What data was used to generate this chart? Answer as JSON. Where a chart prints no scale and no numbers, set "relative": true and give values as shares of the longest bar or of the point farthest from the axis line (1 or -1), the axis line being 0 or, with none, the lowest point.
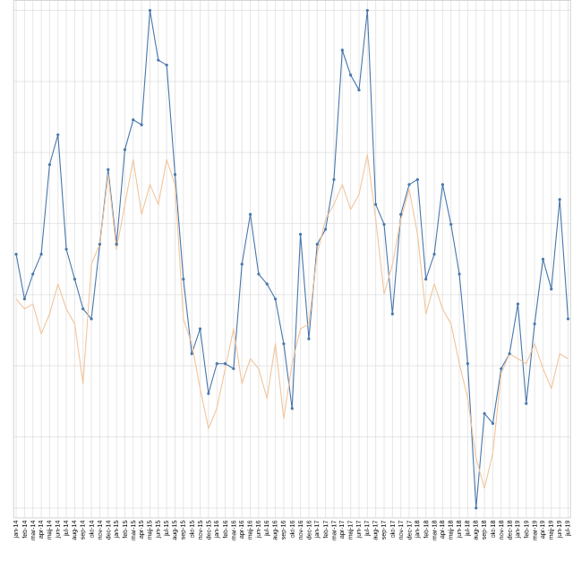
{
  "chart_data": {
    "type": "line",
    "relative": true,
    "grid": true,
    "categories": [
      "jan-14",
      "feb-14",
      "mar-14",
      "apr-14",
      "maj-14",
      "jun-14",
      "jul-14",
      "aug-14",
      "sep-14",
      "okt-14",
      "nov-14",
      "dec-14",
      "jan-15",
      "feb-15",
      "mar-15",
      "apr-15",
      "maj-15",
      "jun-15",
      "jul-15",
      "aug-15",
      "sep-15",
      "okt-15",
      "nov-15",
      "dec-15",
      "jan-16",
      "feb-16",
      "mar-16",
      "apr-16",
      "maj-16",
      "jun-16",
      "jul-16",
      "aug-16",
      "sep-16",
      "okt-16",
      "nov-16",
      "dec-16",
      "jan-17",
      "feb-17",
      "mar-17",
      "apr-17",
      "maj-17",
      "jun-17",
      "jul-17",
      "aug-17",
      "sep-17",
      "okt-17",
      "nov-17",
      "dec-17",
      "jan-18",
      "feb-18",
      "mar-18",
      "apr-18",
      "maj-18",
      "jun-18",
      "jul-18",
      "aug-18",
      "sep-18",
      "okt-18",
      "nov-18",
      "dec-18",
      "jan-19",
      "feb-19",
      "mar-19",
      "apr-19",
      "maj-19",
      "jun-19",
      "jul-19"
    ],
    "series": [
      {
        "color": "#4a78ad",
        "marker": "circle",
        "values": [
          0.51,
          0.42,
          0.47,
          0.51,
          0.69,
          0.75,
          0.52,
          0.46,
          0.4,
          0.38,
          0.53,
          0.68,
          0.53,
          0.72,
          0.78,
          0.77,
          1.0,
          0.9,
          0.89,
          0.67,
          0.46,
          0.31,
          0.36,
          0.23,
          0.29,
          0.29,
          0.28,
          0.49,
          0.59,
          0.47,
          0.45,
          0.42,
          0.33,
          0.2,
          0.55,
          0.34,
          0.53,
          0.56,
          0.66,
          0.92,
          0.87,
          0.84,
          1.0,
          0.61,
          0.57,
          0.39,
          0.59,
          0.65,
          0.66,
          0.46,
          0.51,
          0.65,
          0.57,
          0.47,
          0.29,
          0,
          0.19,
          0.17,
          0.28,
          0.31,
          0.41,
          0.21,
          0.37,
          0.5,
          0.44,
          0.62,
          0.38
        ]
      },
      {
        "color": "#f2c59c",
        "marker": "none",
        "values": [
          0.42,
          0.4,
          0.41,
          0.35,
          0.39,
          0.45,
          0.4,
          0.37,
          0.25,
          0.49,
          0.53,
          0.67,
          0.52,
          0.61,
          0.7,
          0.59,
          0.65,
          0.61,
          0.7,
          0.65,
          0.38,
          0.33,
          0.24,
          0.16,
          0.2,
          0.28,
          0.36,
          0.25,
          0.3,
          0.28,
          0.22,
          0.33,
          0.18,
          0.29,
          0.36,
          0.37,
          0.51,
          0.58,
          0.61,
          0.65,
          0.6,
          0.63,
          0.71,
          0.58,
          0.43,
          0.49,
          0.58,
          0.64,
          0.55,
          0.39,
          0.45,
          0.4,
          0.37,
          0.29,
          0.22,
          0.1,
          0.04,
          0.11,
          0.27,
          0.31,
          0.3,
          0.29,
          0.33,
          0.28,
          0.24,
          0.31,
          0.3
        ]
      }
    ]
  }
}
